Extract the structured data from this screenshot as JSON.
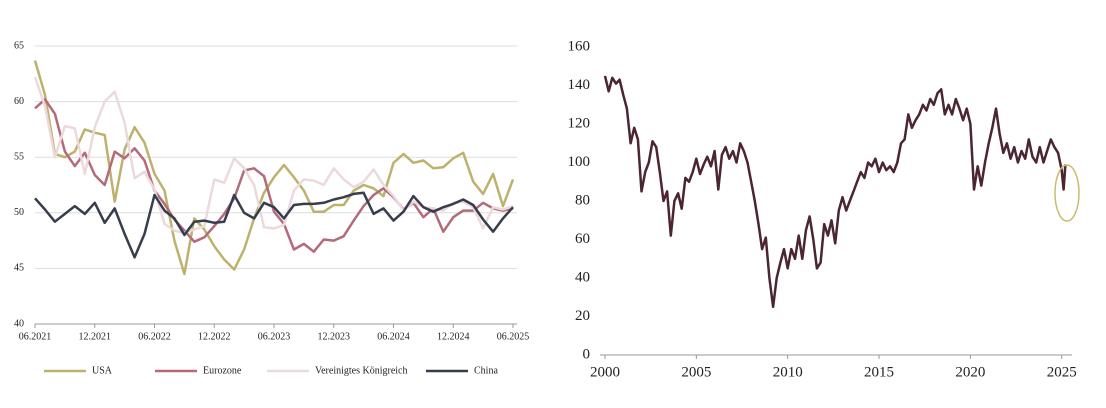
{
  "chart_data": [
    {
      "type": "line",
      "categories": [
        "06.2021",
        null,
        null,
        null,
        null,
        null,
        "12.2021",
        null,
        null,
        null,
        null,
        null,
        "06.2022",
        null,
        null,
        null,
        null,
        null,
        "12.2022",
        null,
        null,
        null,
        null,
        null,
        "06.2023",
        null,
        null,
        null,
        null,
        null,
        "12.2023",
        null,
        null,
        null,
        null,
        null,
        "06.2024",
        null,
        null,
        null,
        null,
        null,
        "12.2024",
        null,
        null,
        null,
        null,
        null,
        "06.2025"
      ],
      "ylim": [
        40,
        65
      ],
      "yticks": [
        40,
        45,
        50,
        55,
        60,
        65
      ],
      "grid": true,
      "series": [
        {
          "name": "USA",
          "color": "#bdb26c",
          "values": [
            63.7,
            60.6,
            55.3,
            55.0,
            55.5,
            57.5,
            57.2,
            57.0,
            51.0,
            55.7,
            57.7,
            56.3,
            53.5,
            52.0,
            47.5,
            44.5,
            49.5,
            48.5,
            47.0,
            45.8,
            44.9,
            46.7,
            49.5,
            51.8,
            53.2,
            54.3,
            53.2,
            52.0,
            50.1,
            50.1,
            50.7,
            50.7,
            52.0,
            52.5,
            52.2,
            51.5,
            54.5,
            55.3,
            54.5,
            54.7,
            54.0,
            54.1,
            54.9,
            55.4,
            52.8,
            51.7,
            53.5,
            50.6,
            53.0
          ]
        },
        {
          "name": "Eurozone",
          "color": "#b36a79",
          "values": [
            59.4,
            60.2,
            58.9,
            55.5,
            54.2,
            55.4,
            53.4,
            52.5,
            55.5,
            54.9,
            55.8,
            54.7,
            52.0,
            50.8,
            49.4,
            48.4,
            47.4,
            47.8,
            48.8,
            49.9,
            51.3,
            53.8,
            54.0,
            53.3,
            50.1,
            49.0,
            46.7,
            47.2,
            46.5,
            47.6,
            47.5,
            47.9,
            49.3,
            50.6,
            51.6,
            52.2,
            51.4,
            50.3,
            50.9,
            49.6,
            50.4,
            48.3,
            49.6,
            50.2,
            50.2,
            50.9,
            50.4,
            50.2,
            50.4
          ]
        },
        {
          "name": "Vereinigtes Königreich",
          "color": "#ecd9dc",
          "values": [
            62.2,
            59.6,
            55.0,
            57.8,
            57.6,
            53.5,
            57.7,
            60.0,
            60.9,
            58.1,
            53.1,
            53.7,
            52.1,
            49.0,
            48.4,
            48.2,
            48.5,
            48.8,
            53.0,
            52.7,
            54.9,
            54.0,
            52.5,
            48.7,
            48.6,
            48.9,
            52.0,
            53.0,
            52.9,
            52.5,
            54.0,
            53.0,
            52.3,
            52.8,
            53.9,
            52.5,
            51.5,
            50.2,
            51.0,
            50.5,
            50.4,
            50.2,
            50.9,
            51.0,
            50.5,
            48.6,
            50.5,
            50.3,
            50.6
          ]
        },
        {
          "name": "China",
          "color": "#363d4c",
          "values": [
            51.3,
            50.3,
            49.2,
            49.9,
            50.6,
            49.9,
            50.9,
            49.1,
            50.4,
            48.1,
            46.0,
            48.1,
            51.6,
            50.2,
            49.5,
            48.0,
            49.2,
            49.3,
            49.1,
            49.2,
            51.6,
            50.0,
            49.5,
            50.9,
            50.5,
            49.5,
            50.7,
            50.8,
            50.8,
            50.9,
            51.2,
            51.4,
            51.7,
            51.8,
            49.9,
            50.4,
            49.3,
            50.1,
            51.5,
            50.5,
            50.1,
            50.5,
            50.8,
            51.2,
            50.7,
            49.4,
            48.3,
            49.5,
            50.5
          ]
        }
      ]
    },
    {
      "type": "line",
      "color": "#4b2630",
      "xlim": [
        2000,
        2026
      ],
      "xticks": [
        2000,
        2005,
        2010,
        2015,
        2020,
        2025
      ],
      "ylim": [
        0,
        160
      ],
      "yticks": [
        0,
        20,
        40,
        60,
        80,
        100,
        120,
        140,
        160
      ],
      "x": [
        2000.0,
        2000.2,
        2000.4,
        2000.6,
        2000.8,
        2001.0,
        2001.2,
        2001.4,
        2001.6,
        2001.8,
        2002.0,
        2002.2,
        2002.4,
        2002.6,
        2002.8,
        2003.0,
        2003.2,
        2003.4,
        2003.6,
        2003.8,
        2004.0,
        2004.2,
        2004.4,
        2004.6,
        2004.8,
        2005.0,
        2005.2,
        2005.4,
        2005.6,
        2005.8,
        2006.0,
        2006.2,
        2006.4,
        2006.6,
        2006.8,
        2007.0,
        2007.2,
        2007.4,
        2007.6,
        2007.8,
        2008.0,
        2008.2,
        2008.4,
        2008.6,
        2008.8,
        2009.0,
        2009.2,
        2009.4,
        2009.6,
        2009.8,
        2010.0,
        2010.2,
        2010.4,
        2010.6,
        2010.8,
        2011.0,
        2011.2,
        2011.4,
        2011.6,
        2011.8,
        2012.0,
        2012.2,
        2012.4,
        2012.6,
        2012.8,
        2013.0,
        2013.2,
        2013.4,
        2013.6,
        2013.8,
        2014.0,
        2014.2,
        2014.4,
        2014.6,
        2014.8,
        2015.0,
        2015.2,
        2015.4,
        2015.6,
        2015.8,
        2016.0,
        2016.2,
        2016.4,
        2016.6,
        2016.8,
        2017.0,
        2017.2,
        2017.4,
        2017.6,
        2017.8,
        2018.0,
        2018.2,
        2018.4,
        2018.6,
        2018.8,
        2019.0,
        2019.2,
        2019.4,
        2019.6,
        2019.8,
        2020.0,
        2020.2,
        2020.4,
        2020.6,
        2020.8,
        2021.0,
        2021.2,
        2021.4,
        2021.6,
        2021.8,
        2022.0,
        2022.2,
        2022.4,
        2022.6,
        2022.8,
        2023.0,
        2023.2,
        2023.4,
        2023.6,
        2023.8,
        2024.0,
        2024.2,
        2024.4,
        2024.6,
        2024.8,
        2025.0,
        2025.1,
        2025.2
      ],
      "values": [
        145,
        137,
        144,
        141,
        143,
        135,
        128,
        110,
        118,
        112,
        85,
        95,
        100,
        111,
        108,
        95,
        80,
        85,
        62,
        80,
        84,
        76,
        92,
        90,
        95,
        102,
        94,
        99,
        103,
        98,
        106,
        86,
        104,
        108,
        102,
        106,
        100,
        110,
        106,
        100,
        90,
        80,
        68,
        55,
        61,
        40,
        25,
        40,
        48,
        55,
        45,
        55,
        50,
        62,
        50,
        65,
        72,
        60,
        45,
        48,
        68,
        62,
        70,
        58,
        75,
        82,
        75,
        80,
        85,
        90,
        95,
        92,
        100,
        98,
        102,
        95,
        100,
        96,
        98,
        95,
        100,
        110,
        112,
        125,
        118,
        122,
        125,
        130,
        127,
        133,
        130,
        136,
        138,
        125,
        130,
        125,
        133,
        128,
        122,
        128,
        120,
        86,
        98,
        88,
        100,
        110,
        118,
        128,
        115,
        105,
        110,
        102,
        108,
        100,
        106,
        102,
        112,
        103,
        100,
        108,
        100,
        106,
        112,
        108,
        105,
        96,
        86,
        99
      ]
    }
  ]
}
